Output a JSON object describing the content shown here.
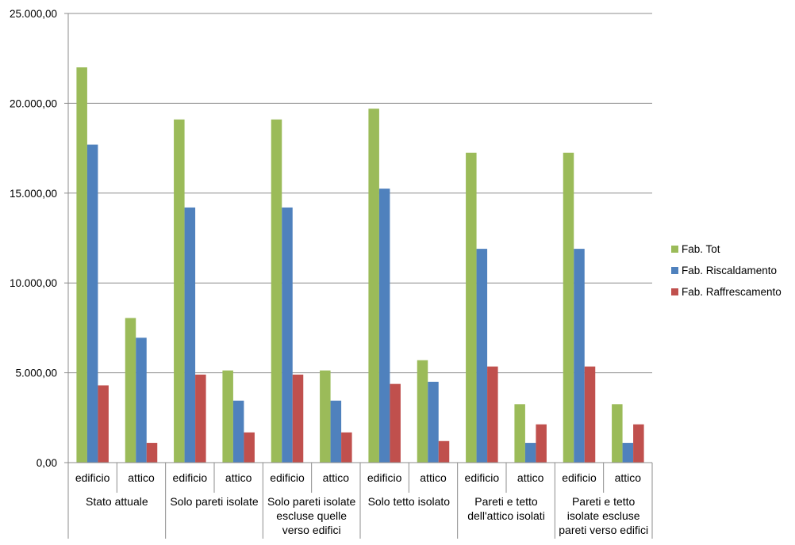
{
  "chart_data": {
    "type": "bar",
    "groups": [
      "Stato attuale",
      "Solo pareti isolate",
      "Solo pareti isolate escluse quelle verso edifici",
      "Solo tetto isolato",
      "Pareti e tetto dell'attico isolati",
      "Pareti e tetto isolate escluse pareti verso edifici"
    ],
    "group_label_lines": [
      [
        "Stato attuale"
      ],
      [
        "Solo pareti isolate"
      ],
      [
        "Solo pareti isolate",
        "escluse quelle",
        "verso edifici"
      ],
      [
        "Solo tetto isolato"
      ],
      [
        "Pareti e tetto",
        "dell'attico isolati"
      ],
      [
        "Pareti e tetto",
        "isolate escluse",
        "pareti verso edifici"
      ]
    ],
    "subcategories": [
      "edificio",
      "attico"
    ],
    "series": [
      {
        "name": "Fab. Tot",
        "color": "#9bbb59",
        "values": [
          22000,
          8050,
          19100,
          5130,
          19100,
          5130,
          19700,
          5700,
          17250,
          3250,
          17250,
          3250
        ]
      },
      {
        "name": "Fab. Riscaldamento",
        "color": "#4f81bd",
        "values": [
          17700,
          6950,
          14200,
          3450,
          14200,
          3450,
          15250,
          4500,
          11900,
          1100,
          11900,
          1100
        ]
      },
      {
        "name": "Fab. Raffrescamento",
        "color": "#c0504d",
        "values": [
          4300,
          1100,
          4900,
          1680,
          4900,
          1680,
          4380,
          1200,
          5350,
          2130,
          5350,
          2130
        ]
      }
    ],
    "ylim": [
      0,
      25000
    ],
    "yticks": [
      0,
      5000,
      10000,
      15000,
      20000,
      25000
    ],
    "ytick_labels": [
      "0,00",
      "5.000,00",
      "10.000,00",
      "15.000,00",
      "20.000,00",
      "25.000,00"
    ],
    "grid": true,
    "legend_position": "right"
  }
}
